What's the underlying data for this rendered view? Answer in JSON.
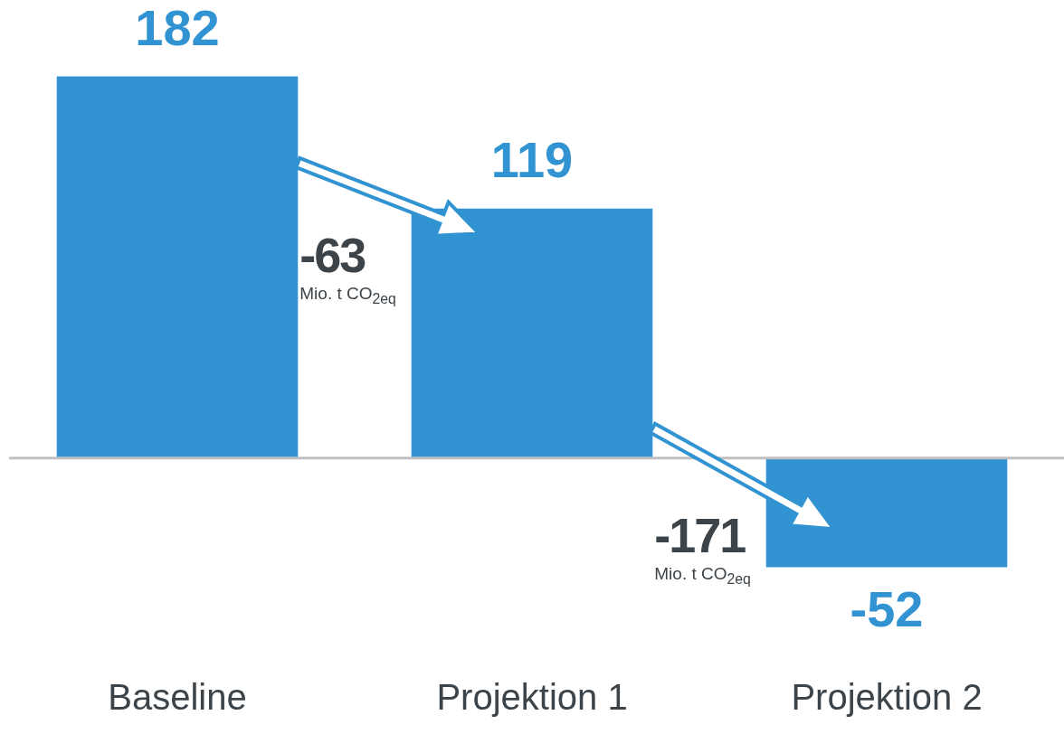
{
  "chart_data": {
    "type": "bar",
    "categories": [
      "Baseline",
      "Projektion 1",
      "Projektion 2"
    ],
    "values": [
      182,
      119,
      -52
    ],
    "color": "#3193d2",
    "data_labels": true,
    "annotations": [
      "-63\nMio. t CO$_{2eq}$",
      "-171\nMio. t CO$_{2eq}$"
    ]
  }
}
